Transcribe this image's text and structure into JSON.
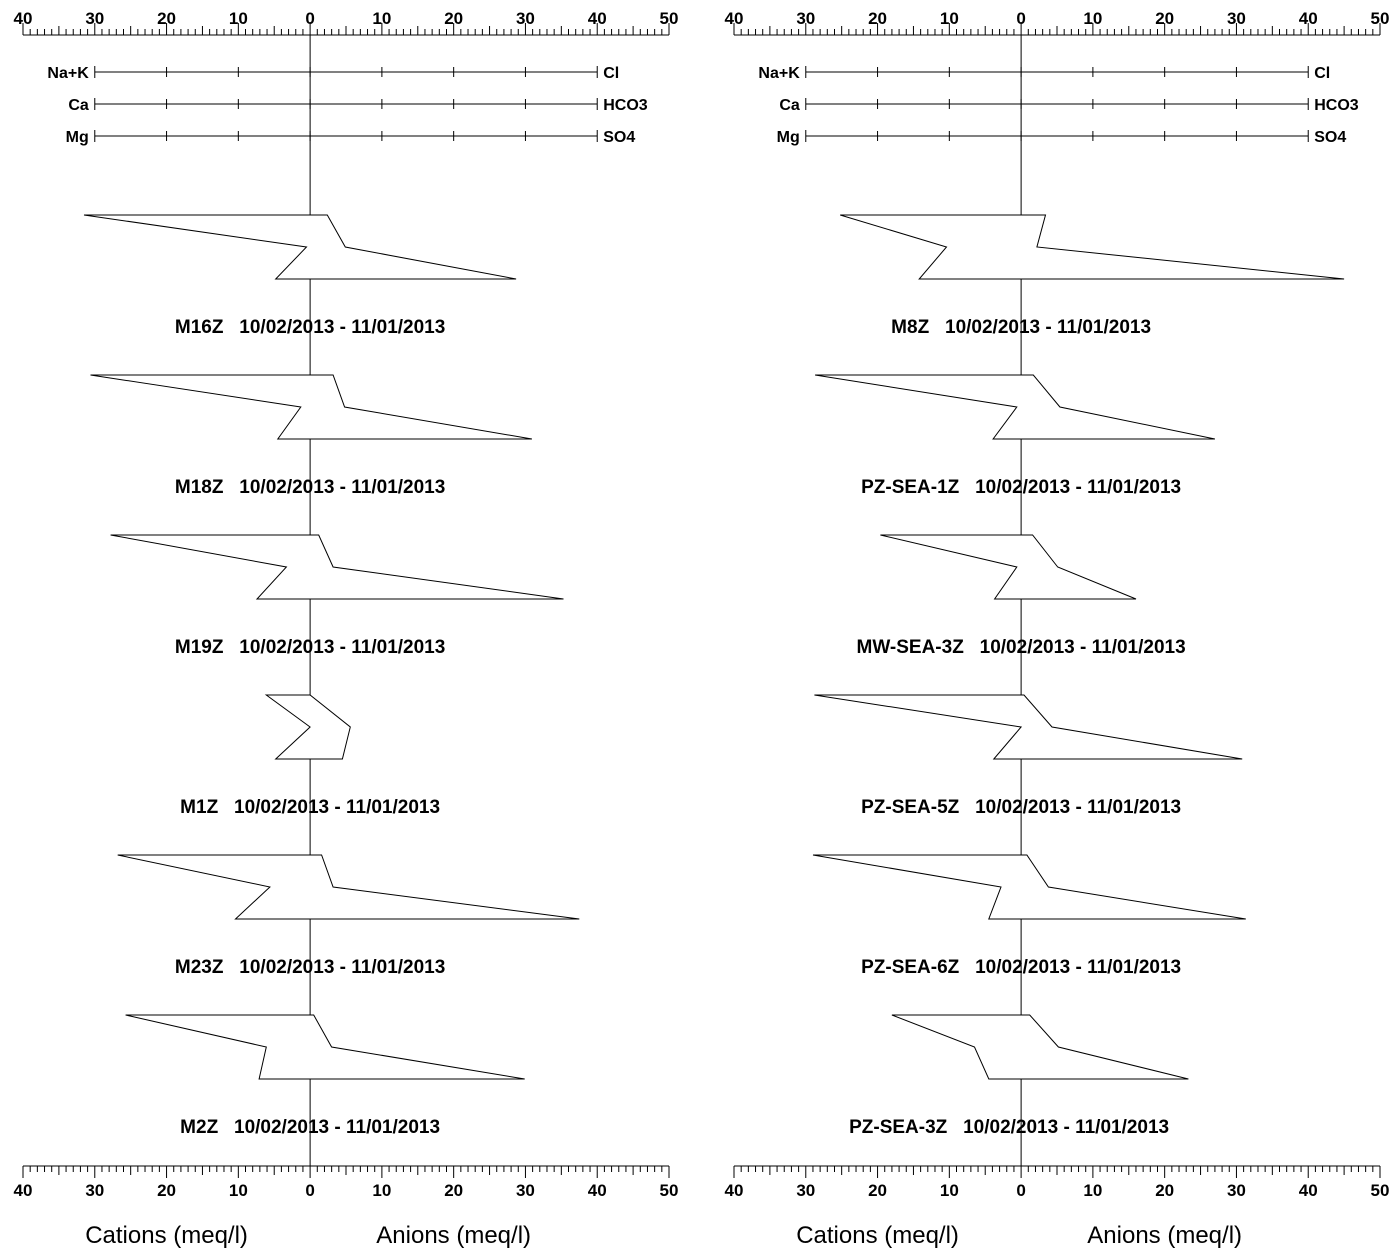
{
  "chart_data": [
    {
      "type": "stiff",
      "xlim": [
        -40,
        50
      ],
      "ticks_top": [
        "40",
        "30",
        "20",
        "10",
        "0",
        "10",
        "20",
        "30",
        "40",
        "50"
      ],
      "ticks_bottom": [
        "40",
        "30",
        "20",
        "10",
        "0",
        "10",
        "20",
        "30",
        "40",
        "50"
      ],
      "cation_axis_label": "Cations (meq/l)",
      "anion_axis_label": "Anions (meq/l)",
      "ion_pairs": [
        {
          "cation": "Na+K",
          "anion": "Cl"
        },
        {
          "cation": "Ca",
          "anion": "HCO3"
        },
        {
          "cation": "Mg",
          "anion": "SO4"
        }
      ],
      "samples": [
        {
          "id": "M16Z",
          "date_range": "10/02/2013 - 11/01/2013",
          "cations": {
            "Na+K": 31.5,
            "Ca": 0.5,
            "Mg": 4.8
          },
          "anions": {
            "Cl": 2.4,
            "HCO3": 4.9,
            "SO4": 28.7
          }
        },
        {
          "id": "M18Z",
          "date_range": "10/02/2013 - 11/01/2013",
          "cations": {
            "Na+K": 30.6,
            "Ca": 1.3,
            "Mg": 4.5
          },
          "anions": {
            "Cl": 3.2,
            "HCO3": 4.8,
            "SO4": 30.9
          }
        },
        {
          "id": "M19Z",
          "date_range": "10/02/2013 - 11/01/2013",
          "cations": {
            "Na+K": 27.8,
            "Ca": 3.3,
            "Mg": 7.4
          },
          "anions": {
            "Cl": 1.2,
            "HCO3": 3.2,
            "SO4": 35.3
          }
        },
        {
          "id": "M1Z",
          "date_range": "10/02/2013 - 11/01/2013",
          "cations": {
            "Na+K": 6.1,
            "Ca": 0.0,
            "Mg": 4.8
          },
          "anions": {
            "Cl": 0.0,
            "HCO3": 5.6,
            "SO4": 4.5
          }
        },
        {
          "id": "M23Z",
          "date_range": "10/02/2013 - 11/01/2013",
          "cations": {
            "Na+K": 26.8,
            "Ca": 5.6,
            "Mg": 10.4
          },
          "anions": {
            "Cl": 1.6,
            "HCO3": 3.2,
            "SO4": 37.5
          }
        },
        {
          "id": "M2Z",
          "date_range": "10/02/2013 - 11/01/2013",
          "cations": {
            "Na+K": 25.7,
            "Ca": 6.1,
            "Mg": 7.1
          },
          "anions": {
            "Cl": 0.5,
            "HCO3": 3.0,
            "SO4": 29.9
          }
        }
      ]
    },
    {
      "type": "stiff",
      "xlim": [
        -40,
        50
      ],
      "ticks_top": [
        "40",
        "30",
        "20",
        "10",
        "0",
        "10",
        "20",
        "30",
        "40",
        "50"
      ],
      "ticks_bottom": [
        "40",
        "30",
        "20",
        "10",
        "0",
        "10",
        "20",
        "30",
        "40",
        "50"
      ],
      "cation_axis_label": "Cations (meq/l)",
      "anion_axis_label": "Anions (meq/l)",
      "ion_pairs": [
        {
          "cation": "Na+K",
          "anion": "Cl"
        },
        {
          "cation": "Ca",
          "anion": "HCO3"
        },
        {
          "cation": "Mg",
          "anion": "SO4"
        }
      ],
      "samples": [
        {
          "id": "M8Z",
          "date_range": "10/02/2013 - 11/01/2013",
          "cations": {
            "Na+K": 25.2,
            "Ca": 10.4,
            "Mg": 14.2
          },
          "anions": {
            "Cl": 3.4,
            "HCO3": 2.2,
            "SO4": 45.0
          }
        },
        {
          "id": "PZ-SEA-1Z",
          "date_range": "10/02/2013 - 11/01/2013",
          "cations": {
            "Na+K": 28.7,
            "Ca": 0.6,
            "Mg": 3.9
          },
          "anions": {
            "Cl": 1.7,
            "HCO3": 5.4,
            "SO4": 27.0
          }
        },
        {
          "id": "MW-SEA-3Z",
          "date_range": "10/02/2013 - 11/01/2013",
          "cations": {
            "Na+K": 19.6,
            "Ca": 0.6,
            "Mg": 3.7
          },
          "anions": {
            "Cl": 1.6,
            "HCO3": 5.1,
            "SO4": 16.0
          }
        },
        {
          "id": "PZ-SEA-5Z",
          "date_range": "10/02/2013 - 11/01/2013",
          "cations": {
            "Na+K": 28.8,
            "Ca": 0.0,
            "Mg": 3.8
          },
          "anions": {
            "Cl": 0.4,
            "HCO3": 4.3,
            "SO4": 30.8
          }
        },
        {
          "id": "PZ-SEA-6Z",
          "date_range": "10/02/2013 - 11/01/2013",
          "cations": {
            "Na+K": 29.0,
            "Ca": 2.8,
            "Mg": 4.5
          },
          "anions": {
            "Cl": 0.8,
            "HCO3": 3.8,
            "SO4": 31.3
          }
        },
        {
          "id": "PZ-SEA-3Z",
          "date_range": "10/02/2013 - 11/01/2013",
          "cations": {
            "Na+K": 18.0,
            "Ca": 6.5,
            "Mg": 4.5
          },
          "anions": {
            "Cl": 1.2,
            "HCO3": 5.2,
            "SO4": 23.3
          }
        }
      ]
    }
  ]
}
